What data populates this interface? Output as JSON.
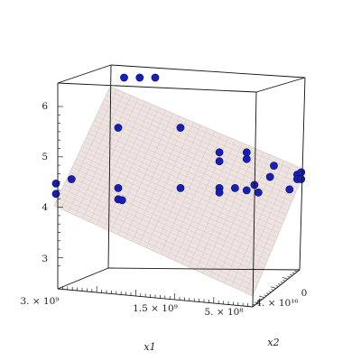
{
  "chart_data": {
    "type": "scatter",
    "title": "",
    "xlabel": "x1",
    "ylabel": "x2",
    "zlabel": "",
    "x_ticks": [
      "3. × 10⁹",
      "1.5 × 10⁹",
      "5. × 10⁸"
    ],
    "y_ticks": [
      "4. × 10¹⁶",
      "0"
    ],
    "z_ticks": [
      "3",
      "4",
      "5",
      "6"
    ],
    "zlim": [
      2.7,
      6.9
    ],
    "has_fitted_plane": true,
    "colors": {
      "points": "#1720b4",
      "plane": "#e9dcd8"
    },
    "points": [
      {
        "x1": 2000000000.0,
        "x2": 3e+16,
        "z": 6.9
      },
      {
        "x1": 1800000000.0,
        "x2": 3e+16,
        "z": 6.9
      },
      {
        "x1": 1600000000.0,
        "x2": 3e+16,
        "z": 6.9
      },
      {
        "x1": 2400000000.0,
        "x2": 2000000000000000.0,
        "z": 5.9
      },
      {
        "x1": 1600000000.0,
        "x2": 2000000000000000.0,
        "z": 5.9
      },
      {
        "x1": 1100000000.0,
        "x2": 2000000000000000.0,
        "z": 5.35
      },
      {
        "x1": 1100000000.0,
        "x2": 2000000000000000.0,
        "z": 5.15
      },
      {
        "x1": 750000000.0,
        "x2": 2000000000000000.0,
        "z": 5.35
      },
      {
        "x1": 750000000.0,
        "x2": 2000000000000000.0,
        "z": 5.2
      },
      {
        "x1": 400000000.0,
        "x2": 2000000000000000.0,
        "z": 5.05
      },
      {
        "x1": 100000000.0,
        "x2": 2000000000000000.0,
        "z": 4.85
      },
      {
        "x1": 100000000.0,
        "x2": 2000000000000000.0,
        "z": 4.75
      },
      {
        "x1": 450000000.0,
        "x2": 2000000000000000.0,
        "z": 4.8
      },
      {
        "x1": 3000000000.0,
        "x2": 2000000000000000.0,
        "z": 4.75
      },
      {
        "x1": 3200000000.0,
        "x2": 2000000000000000.0,
        "z": 4.65
      },
      {
        "x1": 3200000000.0,
        "x2": 2000000000000000.0,
        "z": 4.42
      },
      {
        "x1": 2400000000.0,
        "x2": 2000000000000000.0,
        "z": 4.55
      },
      {
        "x1": 2400000000.0,
        "x2": 2000000000000000.0,
        "z": 4.3
      },
      {
        "x1": 2350000000.0,
        "x2": 2000000000000000.0,
        "z": 4.28
      },
      {
        "x1": 1600000000.0,
        "x2": 2000000000000000.0,
        "z": 4.55
      },
      {
        "x1": 1100000000.0,
        "x2": 2000000000000000.0,
        "z": 4.55
      },
      {
        "x1": 1100000000.0,
        "x2": 2000000000000000.0,
        "z": 4.45
      },
      {
        "x1": 900000000.0,
        "x2": 2000000000000000.0,
        "z": 4.55
      },
      {
        "x1": 750000000.0,
        "x2": 2000000000000000.0,
        "z": 4.5
      },
      {
        "x1": 650000000.0,
        "x2": 2000000000000000.0,
        "z": 4.62
      },
      {
        "x1": 600000000.0,
        "x2": 2000000000000000.0,
        "z": 4.45
      },
      {
        "x1": 50000000.0,
        "x2": 2000000000000000.0,
        "z": 4.9
      },
      {
        "x1": 50000000.0,
        "x2": 2000000000000000.0,
        "z": 4.75
      },
      {
        "x1": 200000000.0,
        "x2": 2000000000000000.0,
        "z": 4.52
      }
    ]
  }
}
